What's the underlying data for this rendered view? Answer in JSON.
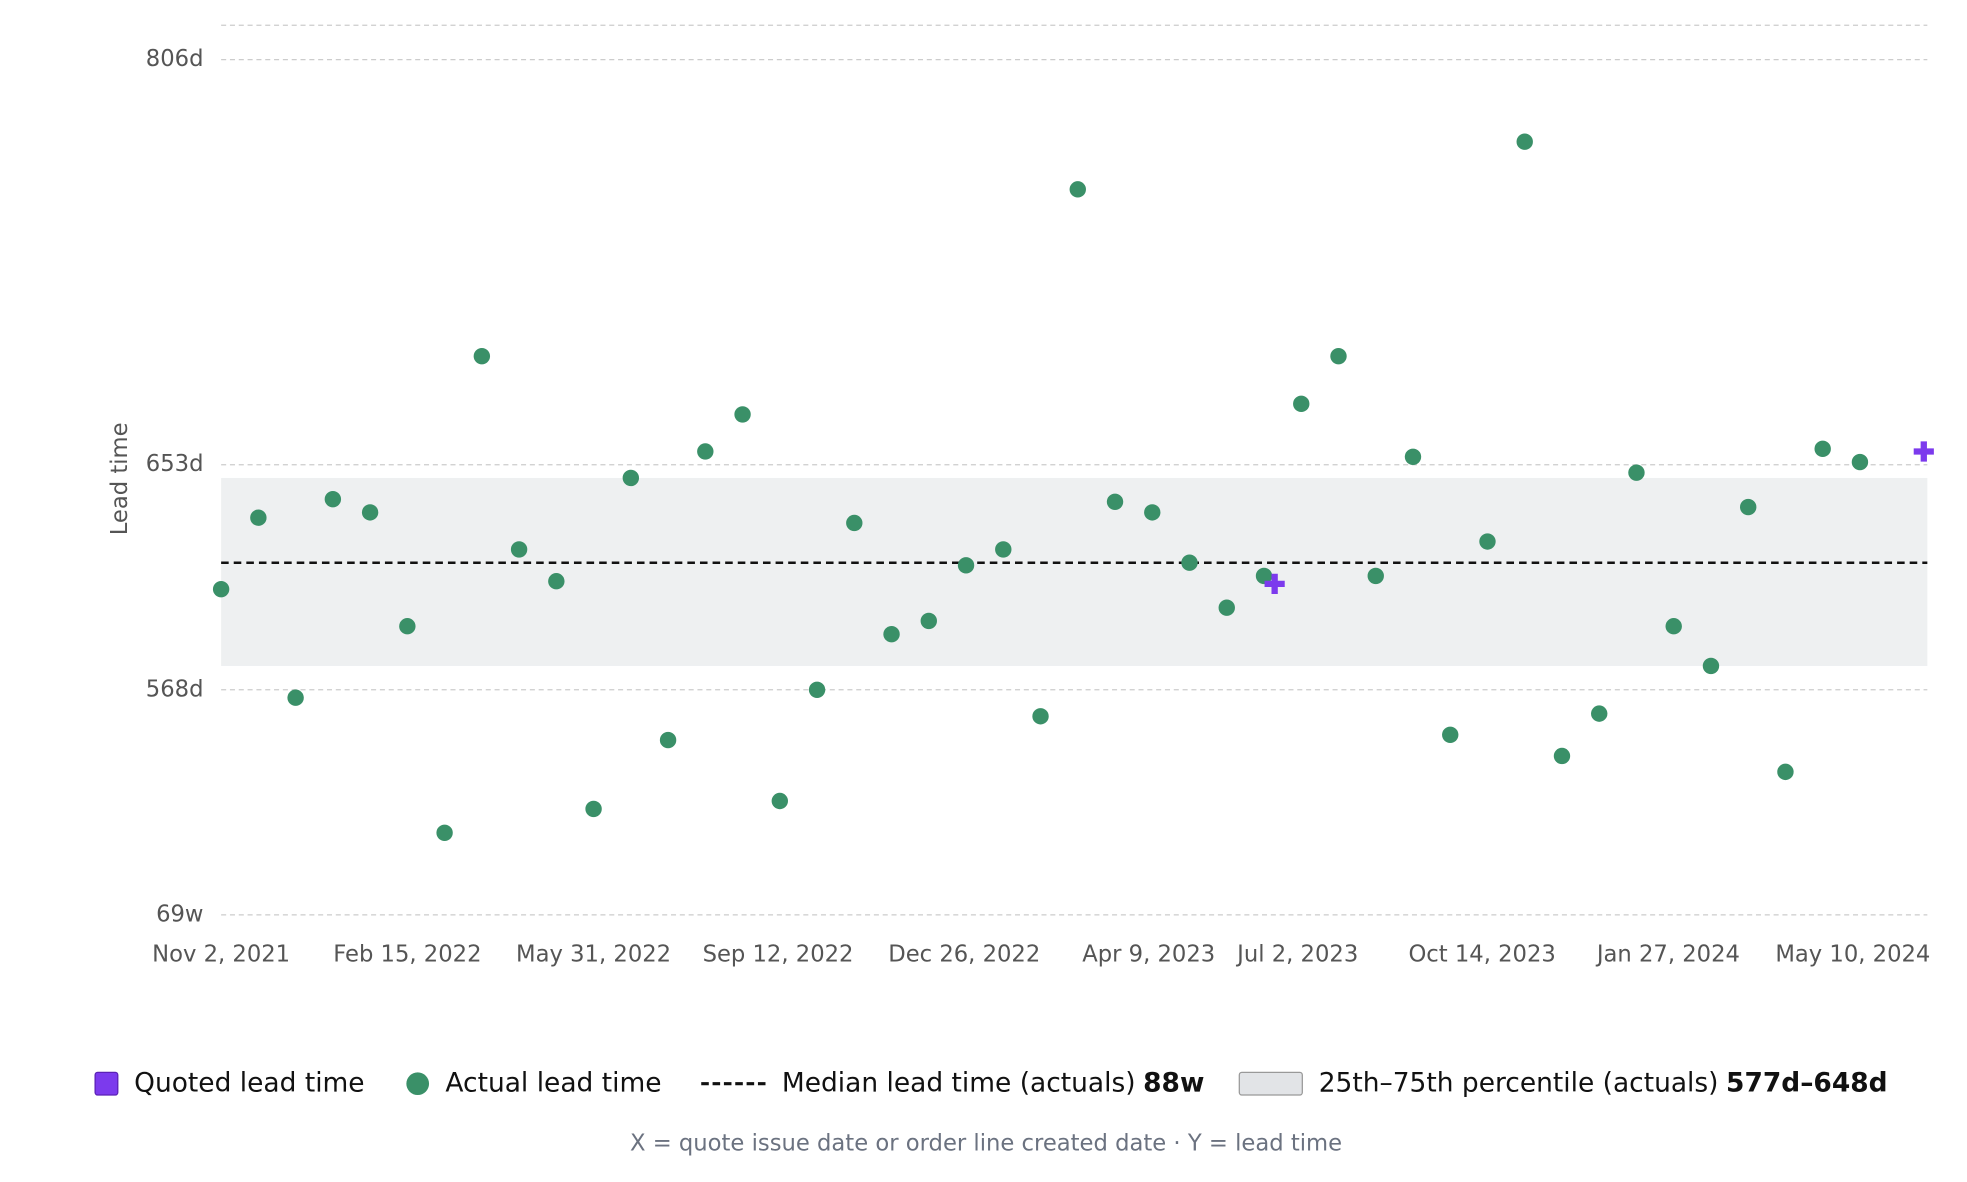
{
  "chart_data": {
    "type": "scatter",
    "y_label": "Lead time",
    "footnote": "X = quote issue date or order line created date · Y = lead time",
    "xlim": [
      "2021-11-02",
      "2024-06-21"
    ],
    "xticks": [
      {
        "value": "2021-11-02",
        "label": "Nov 2, 2021"
      },
      {
        "value": "2022-02-15",
        "label": "Feb 15, 2022"
      },
      {
        "value": "2022-05-31",
        "label": "May 31, 2022"
      },
      {
        "value": "2022-09-12",
        "label": "Sep 12, 2022"
      },
      {
        "value": "2022-12-26",
        "label": "Dec 26, 2022"
      },
      {
        "value": "2023-04-09",
        "label": "Apr 9, 2023"
      },
      {
        "value": "2023-07-02",
        "label": "Jul 2, 2023"
      },
      {
        "value": "2023-10-14",
        "label": "Oct 14, 2023"
      },
      {
        "value": "2024-01-27",
        "label": "Jan 27, 2024"
      },
      {
        "value": "2024-05-10",
        "label": "May 10, 2024"
      }
    ],
    "ylim": [
      483,
      819
    ],
    "yticks": [
      {
        "value": 483,
        "label": "69w"
      },
      {
        "value": 568,
        "label": "568d"
      },
      {
        "value": 653,
        "label": "653d"
      },
      {
        "value": 806,
        "label": "806d"
      }
    ],
    "grid": true,
    "median": {
      "name": "Median lead time (actuals)",
      "value": 616,
      "label": "88w",
      "color": "#111111"
    },
    "band": {
      "name": "25th–75th percentile (actuals)",
      "values": [
        577,
        648
      ],
      "label": "577d–648d",
      "color": "#eef0f1"
    },
    "series": [
      {
        "name": "Quoted lead time",
        "color": "#7c3aed",
        "marker": "plus",
        "x": [
          "2023-06-19",
          "2024-06-19"
        ],
        "values": [
          608,
          658
        ]
      },
      {
        "name": "Actual lead time",
        "color": "#3a9068",
        "marker": "circle",
        "x": [
          "2021-11-02",
          "2021-11-23",
          "2021-12-14",
          "2022-01-04",
          "2022-01-25",
          "2022-02-15",
          "2022-03-08",
          "2022-03-29",
          "2022-04-19",
          "2022-05-10",
          "2022-05-31",
          "2022-06-21",
          "2022-07-12",
          "2022-08-02",
          "2022-08-23",
          "2022-09-13",
          "2022-10-04",
          "2022-10-25",
          "2022-11-15",
          "2022-12-06",
          "2022-12-27",
          "2023-01-17",
          "2023-02-07",
          "2023-02-28",
          "2023-03-21",
          "2023-04-11",
          "2023-05-02",
          "2023-05-23",
          "2023-06-13",
          "2023-07-04",
          "2023-07-25",
          "2023-08-15",
          "2023-09-05",
          "2023-09-26",
          "2023-10-17",
          "2023-11-07",
          "2023-11-28",
          "2023-12-19",
          "2024-01-09",
          "2024-01-30",
          "2024-02-20",
          "2024-03-12",
          "2024-04-02",
          "2024-04-23",
          "2024-05-14"
        ],
        "values": [
          606,
          633,
          565,
          640,
          635,
          592,
          514,
          694,
          621,
          609,
          523,
          648,
          549,
          658,
          672,
          526,
          568,
          631,
          589,
          594,
          615,
          621,
          558,
          757,
          639,
          635,
          616,
          599,
          611,
          676,
          694,
          611,
          656,
          551,
          624,
          775,
          543,
          559,
          650,
          592,
          577,
          637,
          537,
          659,
          654
        ]
      }
    ]
  }
}
